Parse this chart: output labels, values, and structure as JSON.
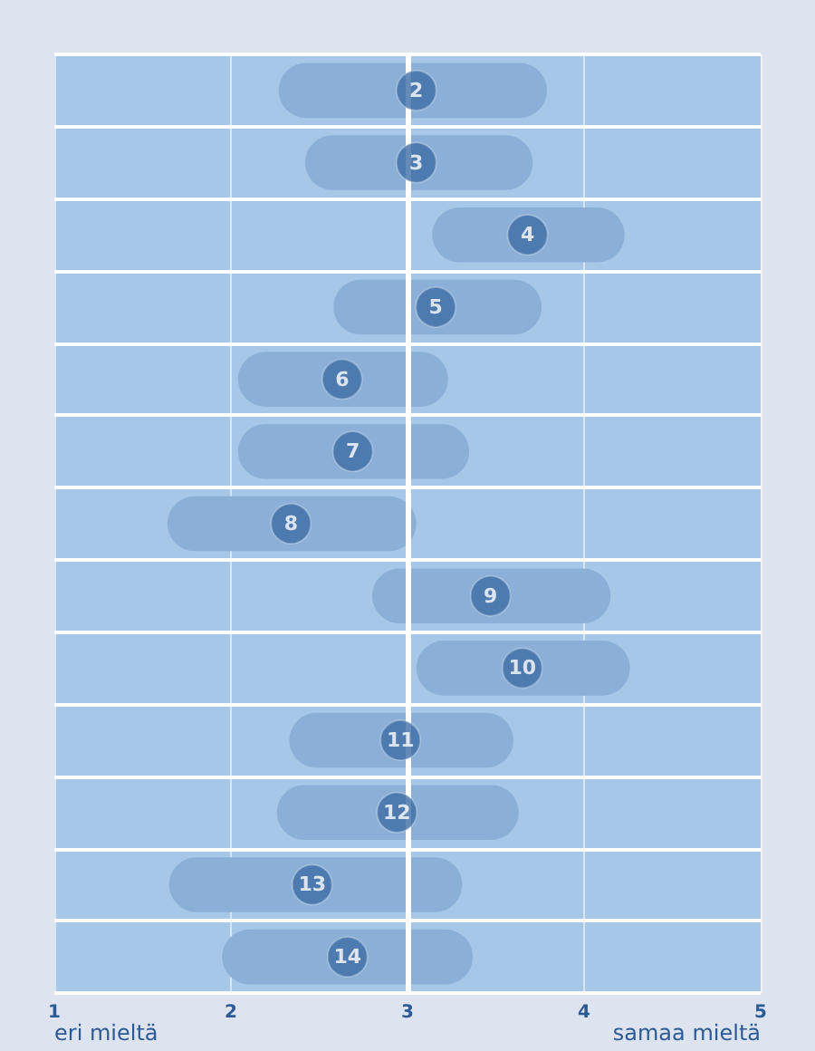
{
  "chart_data": {
    "type": "scatter",
    "orientation": "horizontal",
    "categories": [
      "2",
      "3",
      "4",
      "5",
      "6",
      "7",
      "8",
      "9",
      "10",
      "11",
      "12",
      "13",
      "14"
    ],
    "series": [
      {
        "type": "bar",
        "color": "#8cafd7",
        "base": [
          2.27,
          2.42,
          3.14,
          2.58,
          2.04,
          2.04,
          1.64,
          2.8,
          3.05,
          2.33,
          2.26,
          1.65,
          1.95
        ],
        "values": [
          1.52,
          1.29,
          1.09,
          1.18,
          1.19,
          1.31,
          1.41,
          1.35,
          1.21,
          1.27,
          1.37,
          1.66,
          1.42
        ]
      },
      {
        "color": "#3d6ea6",
        "values": [
          3.05,
          3.05,
          3.68,
          3.16,
          2.63,
          2.69,
          2.34,
          3.47,
          3.65,
          2.96,
          2.94,
          2.46,
          2.66
        ]
      }
    ],
    "marker": "circle",
    "xlim": [
      1,
      5
    ],
    "xticks": [
      1,
      2,
      3,
      4,
      5
    ],
    "grid": "x",
    "tick_labels": "x",
    "ref_lines": [
      {
        "axis": "x",
        "value": 3,
        "color": "#ffffff"
      }
    ],
    "annotations": [
      "eri mieltä",
      "samaa mieltä"
    ]
  }
}
